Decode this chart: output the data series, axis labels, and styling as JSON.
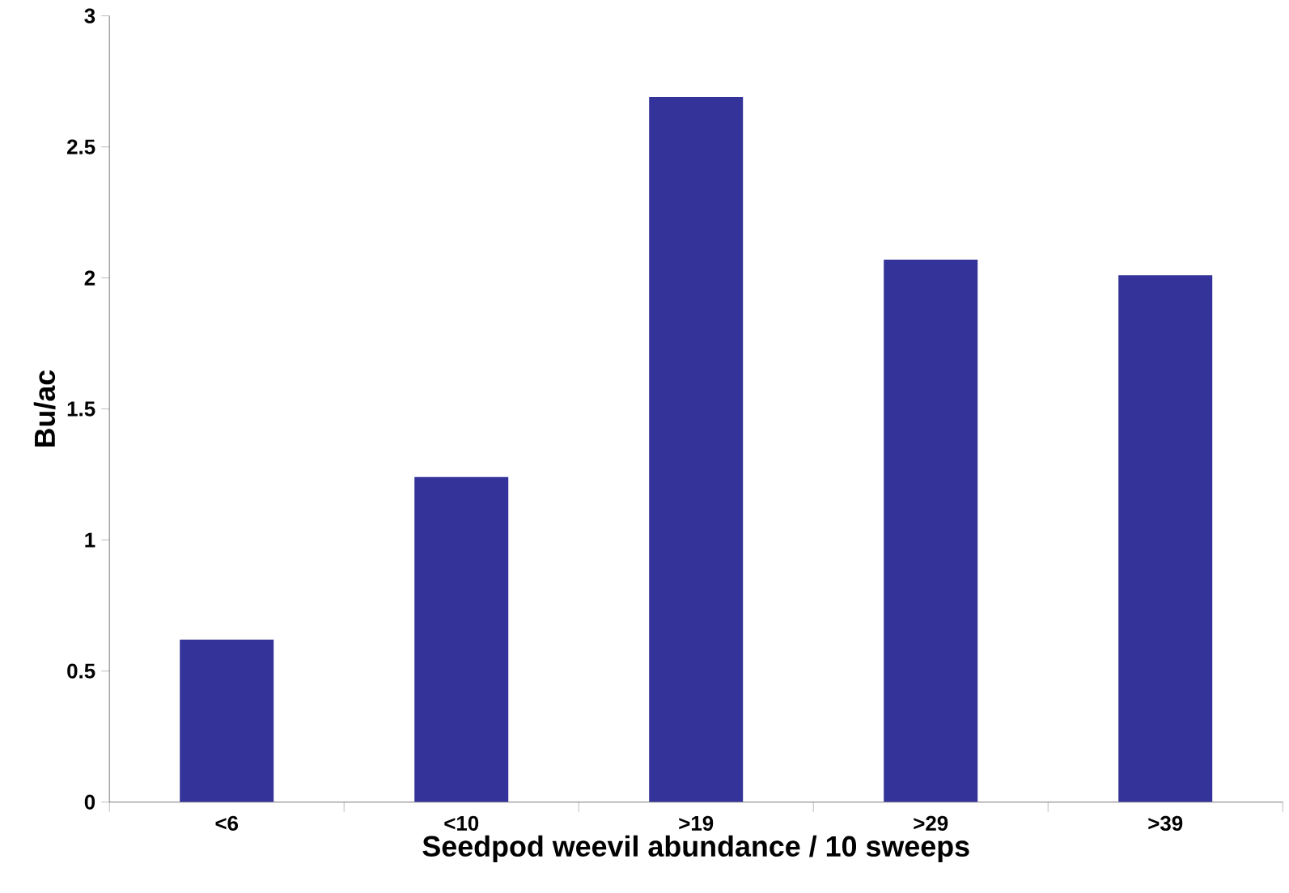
{
  "chart_data": {
    "type": "bar",
    "xlabel": "Seedpod weevil abundance / 10 sweeps",
    "ylabel": "Bu/ac",
    "categories": [
      "<6",
      "<10",
      ">19",
      ">29",
      ">39"
    ],
    "values": [
      0.62,
      1.24,
      2.69,
      2.07,
      2.01
    ],
    "color": "#333399",
    "ylim": [
      0,
      3
    ],
    "yticks": [
      0,
      0.5,
      1,
      1.5,
      2,
      2.5,
      3
    ]
  }
}
